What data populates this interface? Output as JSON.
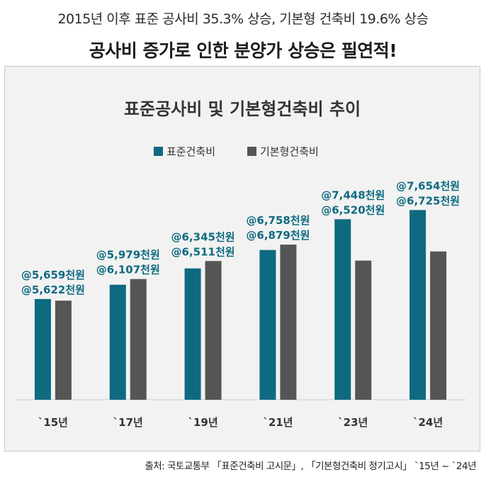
{
  "headline": {
    "line1": "2015년 이후 표준 공사비 35.3% 상승, 기본형 건축비 19.6% 상승",
    "line2": "공사비 증가로 인한 분양가 상승은 필연적!"
  },
  "source": "출처: 국토교통부 「표준건축비 고시문」, 「기본형건축비 정기고시」 `15년 ~ `24년",
  "colors": {
    "series1": "#0e6a80",
    "series2": "#555555",
    "label": "#0e6a80",
    "panel": "#f2f2f2"
  },
  "chart_data": {
    "type": "bar",
    "title": "표준공사비 및 기본형건축비 추이",
    "xlabel": "",
    "ylabel": "",
    "categories": [
      "`15년",
      "`17년",
      "`19년",
      "`21년",
      "`23년",
      "`24년"
    ],
    "series": [
      {
        "name": "표준건축비",
        "values": [
          5659,
          5979,
          6345,
          6758,
          7448,
          7654
        ]
      },
      {
        "name": "기본형건축비",
        "values": [
          5622,
          6107,
          6511,
          6879,
          6520,
          6725
        ]
      }
    ],
    "labels": [
      [
        "@5,659천원",
        "@5,622천원"
      ],
      [
        "@5,979천원",
        "@6,107천원"
      ],
      [
        "@6,345천원",
        "@6,511천원"
      ],
      [
        "@6,758천원",
        "@6,879천원"
      ],
      [
        "@7,448천원",
        "@6,520천원"
      ],
      [
        "@7,654천원",
        "@6,725천원"
      ]
    ],
    "ylim": [
      3400,
      7850
    ],
    "legend_position": "top-center",
    "grid": false
  }
}
